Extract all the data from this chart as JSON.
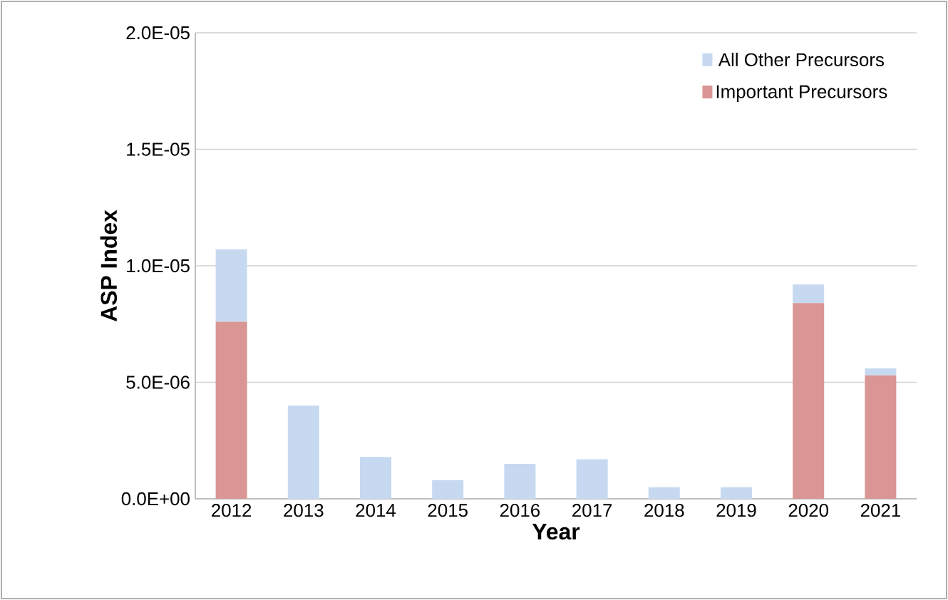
{
  "chart_data": {
    "type": "bar",
    "stacked": true,
    "xlabel": "Year",
    "ylabel": "ASP Index",
    "categories": [
      "2012",
      "2013",
      "2014",
      "2015",
      "2016",
      "2017",
      "2018",
      "2019",
      "2020",
      "2021"
    ],
    "series": [
      {
        "name": "Important Precursors",
        "color": "#d99694",
        "values": [
          7.6e-06,
          0,
          0,
          0,
          0,
          0,
          0,
          0,
          8.4e-06,
          5.3e-06
        ]
      },
      {
        "name": "All Other Precursors",
        "color": "#c6d9f0",
        "values": [
          3.1e-06,
          4e-06,
          1.8e-06,
          8e-07,
          1.5e-06,
          1.7e-06,
          5e-07,
          5e-07,
          8e-07,
          3e-07
        ]
      }
    ],
    "ylim": [
      0,
      2e-05
    ],
    "yticks": [
      {
        "value": 0,
        "label": "0.0E+00"
      },
      {
        "value": 5e-06,
        "label": "5.0E-06"
      },
      {
        "value": 1e-05,
        "label": "1.0E-05"
      },
      {
        "value": 1.5e-05,
        "label": "1.5E-05"
      },
      {
        "value": 2e-05,
        "label": "2.0E-05"
      }
    ],
    "grid": "y",
    "legend": "top right"
  }
}
